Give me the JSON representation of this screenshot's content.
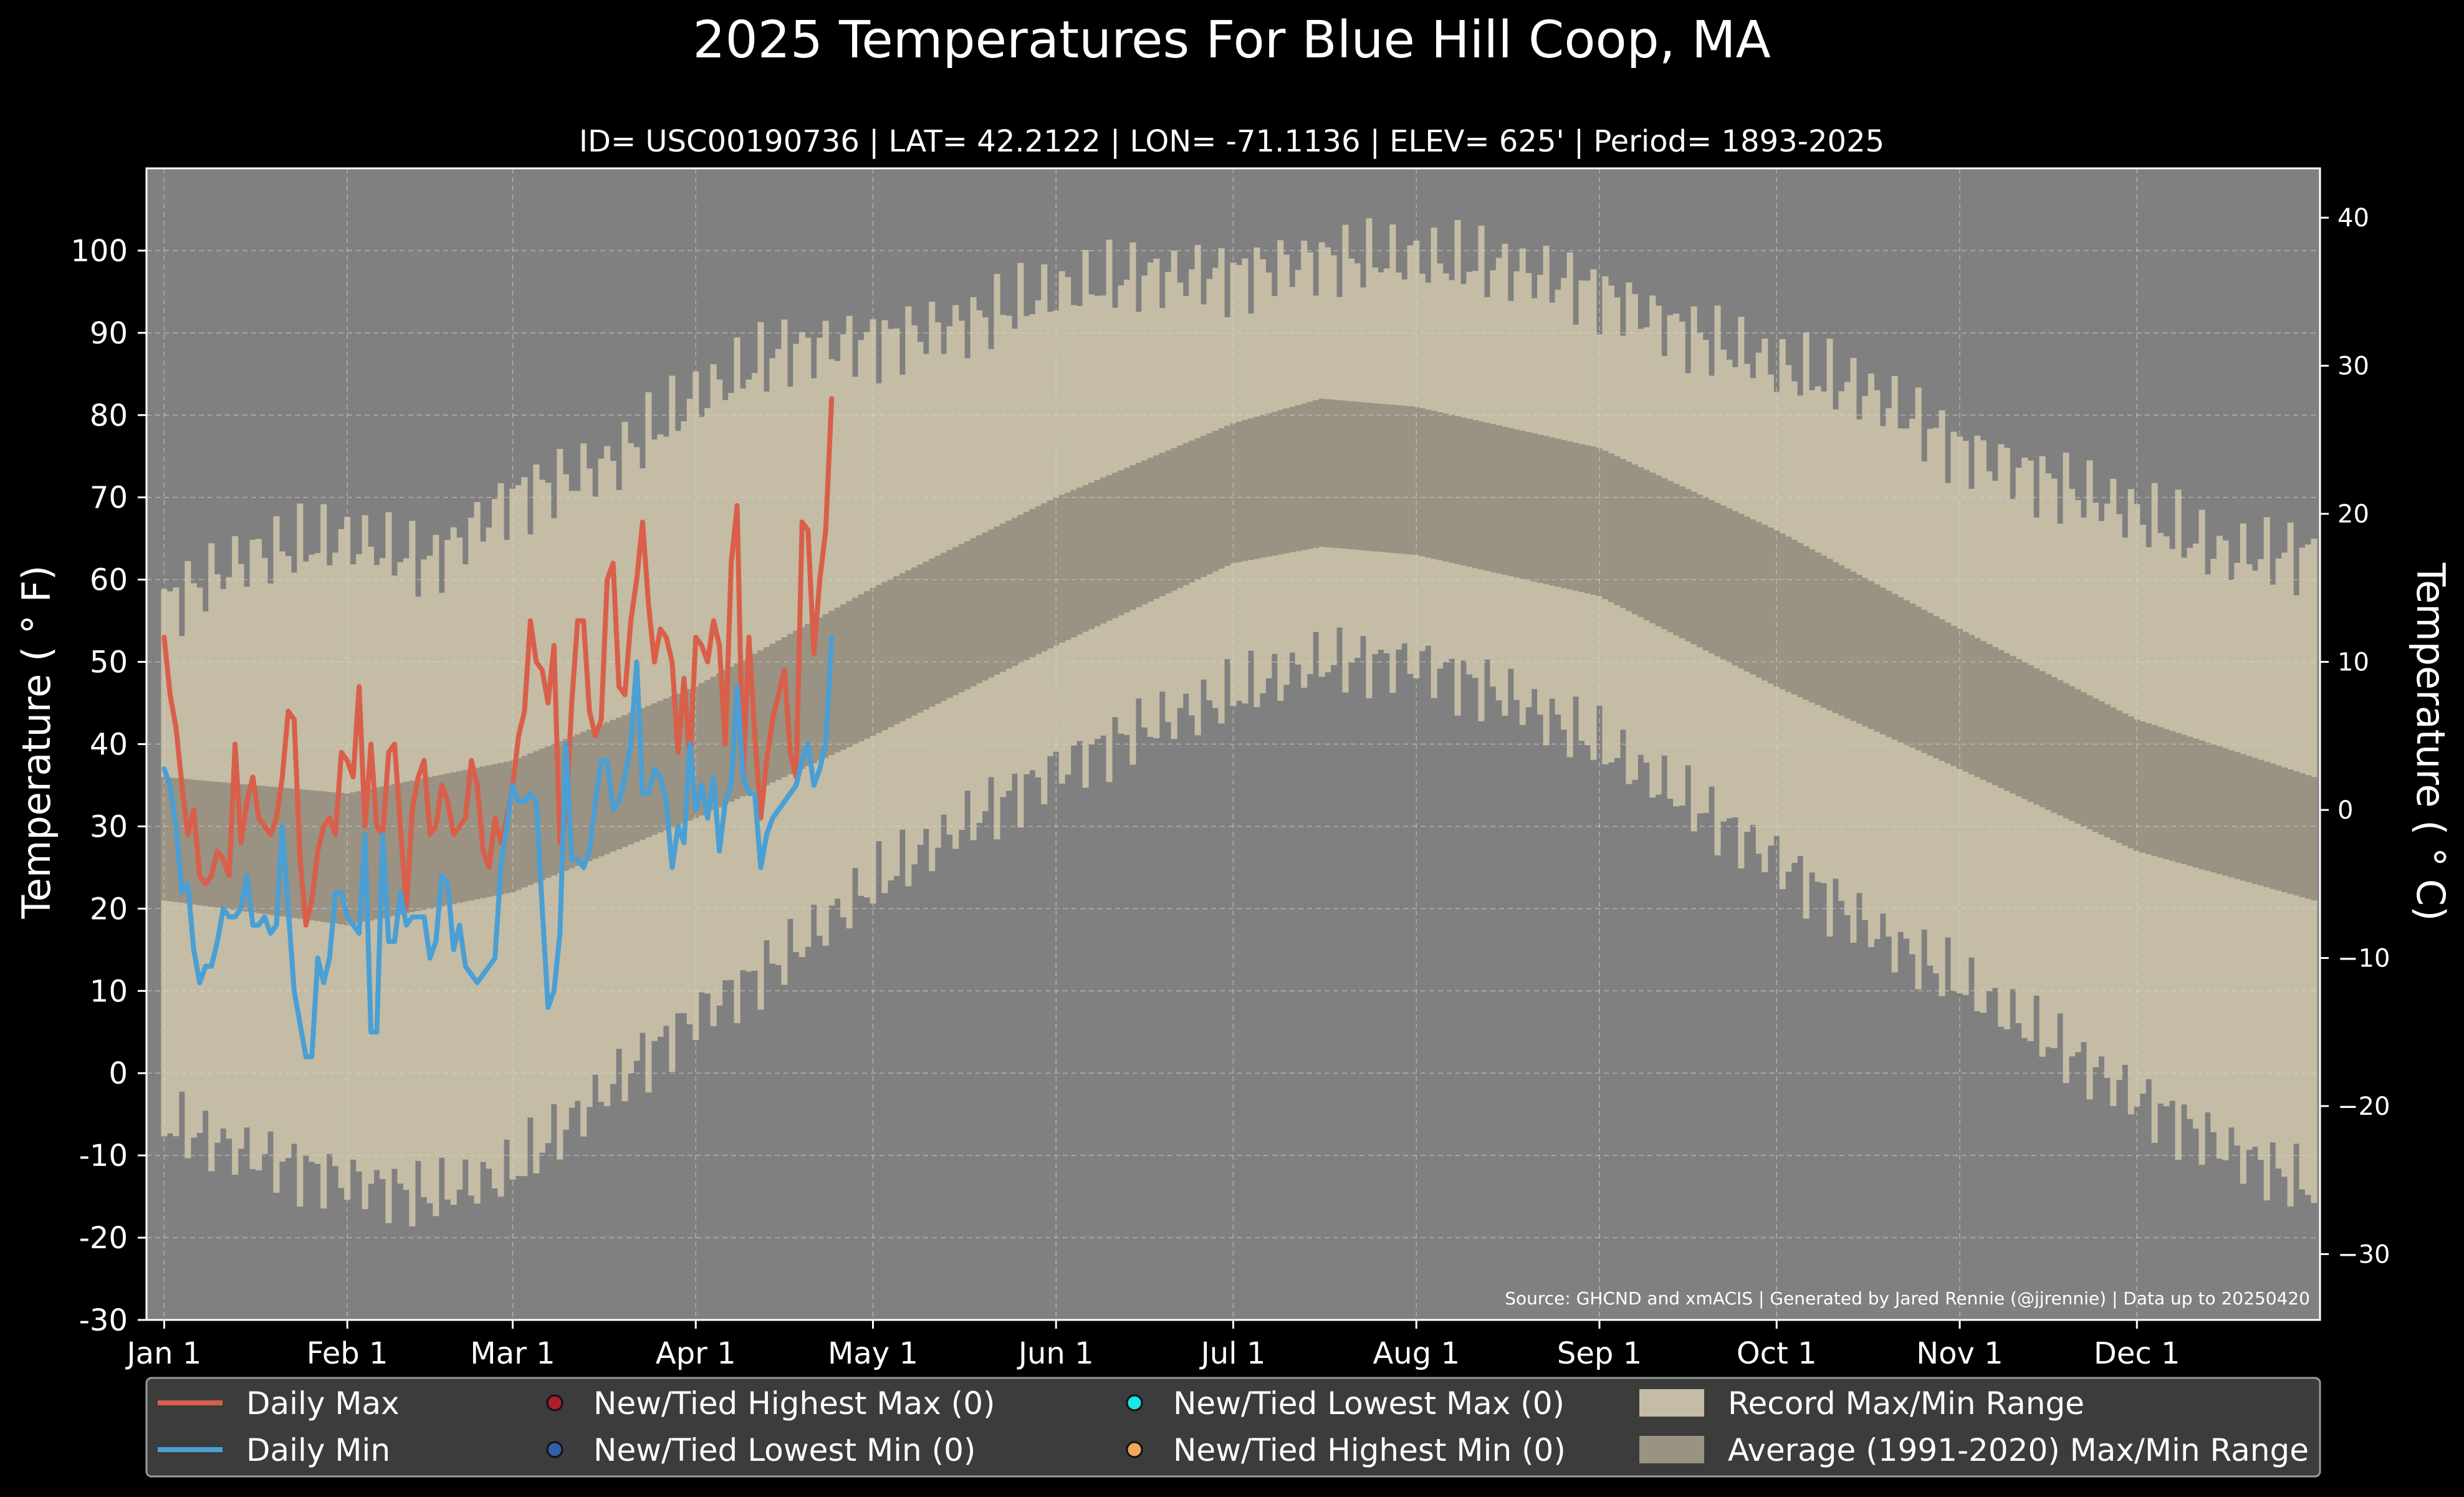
{
  "chart_data": {
    "type": "line",
    "title": "2025 Temperatures For Blue Hill Coop, MA",
    "subtitle": "ID= USC00190736 | LAT= 42.2122 | LON= -71.1136 | ELEV= 625' | Period= 1893-2025",
    "ylabel": "Temperature ($^\\circ$F)",
    "ylabel_display": "Temperature ( ° F)",
    "y2label_display": "Temperature ( ° C)",
    "ylim": [
      -30,
      110
    ],
    "yticks": [
      "-30",
      "-20",
      "-10",
      "0",
      "10",
      "20",
      "30",
      "40",
      "50",
      "60",
      "70",
      "80",
      "90",
      "100"
    ],
    "y2ticks": [
      "−30",
      "−20",
      "−10",
      "0",
      "10",
      "20",
      "30",
      "40"
    ],
    "xlim": [
      -3,
      365
    ],
    "month_ticks": [
      {
        "label": "Jan 1",
        "day": 0
      },
      {
        "label": "Feb 1",
        "day": 31
      },
      {
        "label": "Mar 1",
        "day": 59
      },
      {
        "label": "Apr 1",
        "day": 90
      },
      {
        "label": "May 1",
        "day": 120
      },
      {
        "label": "Jun 1",
        "day": 151
      },
      {
        "label": "Jul 1",
        "day": 181
      },
      {
        "label": "Aug 1",
        "day": 212
      },
      {
        "label": "Sep 1",
        "day": 243
      },
      {
        "label": "Oct 1",
        "day": 273
      },
      {
        "label": "Nov 1",
        "day": 304
      },
      {
        "label": "Dec 1",
        "day": 334
      }
    ],
    "grid": true,
    "source_note": "Source: GHCND and xmACIS | Generated by Jared Rennie (@jjrennie) | Data up to 20250420",
    "record_range_anchors": {
      "max": [
        [
          0,
          57
        ],
        [
          15,
          63
        ],
        [
          31,
          65
        ],
        [
          45,
          62
        ],
        [
          59,
          70
        ],
        [
          75,
          74
        ],
        [
          90,
          82
        ],
        [
          105,
          88
        ],
        [
          120,
          89
        ],
        [
          135,
          91
        ],
        [
          151,
          95
        ],
        [
          166,
          97
        ],
        [
          181,
          97
        ],
        [
          196,
          99
        ],
        [
          212,
          99
        ],
        [
          227,
          98
        ],
        [
          243,
          95
        ],
        [
          258,
          90
        ],
        [
          273,
          86
        ],
        [
          288,
          83
        ],
        [
          304,
          76
        ],
        [
          319,
          72
        ],
        [
          334,
          68
        ],
        [
          349,
          63
        ],
        [
          364,
          63
        ]
      ],
      "min": [
        [
          0,
          -6
        ],
        [
          15,
          -10
        ],
        [
          31,
          -13
        ],
        [
          45,
          -15
        ],
        [
          59,
          -12
        ],
        [
          75,
          -2
        ],
        [
          90,
          7
        ],
        [
          105,
          14
        ],
        [
          120,
          23
        ],
        [
          135,
          30
        ],
        [
          151,
          37
        ],
        [
          166,
          42
        ],
        [
          181,
          46
        ],
        [
          196,
          50
        ],
        [
          212,
          50
        ],
        [
          227,
          46
        ],
        [
          243,
          40
        ],
        [
          258,
          33
        ],
        [
          273,
          26
        ],
        [
          288,
          18
        ],
        [
          304,
          11
        ],
        [
          319,
          4
        ],
        [
          334,
          -3
        ],
        [
          349,
          -9
        ],
        [
          364,
          -14
        ]
      ]
    },
    "normal_range_anchors": {
      "max": [
        [
          0,
          36
        ],
        [
          31,
          34
        ],
        [
          59,
          38
        ],
        [
          90,
          47
        ],
        [
          120,
          59
        ],
        [
          151,
          70
        ],
        [
          181,
          79
        ],
        [
          196,
          82
        ],
        [
          212,
          81
        ],
        [
          243,
          76
        ],
        [
          273,
          66
        ],
        [
          304,
          54
        ],
        [
          334,
          43
        ],
        [
          364,
          36
        ]
      ],
      "min": [
        [
          0,
          21
        ],
        [
          31,
          18
        ],
        [
          59,
          22
        ],
        [
          90,
          31
        ],
        [
          120,
          41
        ],
        [
          151,
          52
        ],
        [
          181,
          62
        ],
        [
          196,
          64
        ],
        [
          212,
          63
        ],
        [
          243,
          58
        ],
        [
          273,
          47
        ],
        [
          304,
          37
        ],
        [
          334,
          27
        ],
        [
          364,
          21
        ]
      ]
    },
    "series": [
      {
        "name": "Daily Max",
        "color": "#d95f4a",
        "values": [
          53,
          46,
          42,
          35,
          29,
          32,
          24,
          23,
          24,
          27,
          26,
          24,
          40,
          28,
          33,
          36,
          31,
          30,
          29,
          31,
          36,
          44,
          43,
          26,
          18,
          21,
          27,
          30,
          31,
          29,
          39,
          38,
          36,
          47,
          30,
          40,
          30,
          29,
          39,
          40,
          30,
          20,
          32,
          36,
          38,
          29,
          30,
          35,
          33,
          29,
          30,
          31,
          38,
          35,
          27,
          25,
          31,
          28,
          31,
          35,
          41,
          44,
          55,
          50,
          49,
          45,
          52,
          28,
          31,
          45,
          55,
          55,
          44,
          41,
          43,
          60,
          62,
          47,
          46,
          55,
          60,
          67,
          57,
          50,
          54,
          53,
          50,
          39,
          48,
          38,
          53,
          52,
          50,
          55,
          52,
          40,
          62,
          69,
          36,
          53,
          41,
          31,
          38,
          43,
          46,
          49,
          39,
          36,
          67,
          66,
          51,
          60,
          66,
          82
        ]
      },
      {
        "name": "Daily Min",
        "color": "#4a9fd4",
        "values": [
          37,
          35,
          30,
          22,
          23,
          15,
          11,
          13,
          13,
          16,
          20,
          19,
          19,
          20,
          24,
          18,
          18,
          19,
          17,
          18,
          30,
          20,
          10,
          6,
          2,
          2,
          14,
          11,
          14,
          22,
          22,
          19,
          18,
          17,
          29,
          5,
          5,
          29,
          16,
          16,
          22,
          18,
          19,
          19,
          19,
          14,
          16,
          24,
          23,
          15,
          18,
          13,
          12,
          11,
          12,
          13,
          14,
          25,
          30,
          35,
          33,
          33,
          34,
          33,
          20,
          8,
          10,
          17,
          40,
          26,
          26,
          25,
          27,
          33,
          38,
          38,
          32,
          33,
          36,
          40,
          50,
          34,
          34,
          37,
          36,
          33,
          25,
          30,
          28,
          40,
          32,
          35,
          31,
          36,
          27,
          33,
          35,
          47,
          36,
          34,
          34,
          25,
          29,
          31,
          32,
          33,
          34,
          35,
          38,
          40,
          35,
          37,
          40,
          53
        ]
      }
    ],
    "legend": {
      "placement": "bottom",
      "items": [
        {
          "label": "Daily Max",
          "symbol": "line",
          "color": "#d95f4a"
        },
        {
          "label": "Daily Min",
          "symbol": "line",
          "color": "#4a9fd4"
        },
        {
          "label": "New/Tied Highest Max (0)",
          "symbol": "dot",
          "color": "#b01c2e"
        },
        {
          "label": "New/Tied Lowest Min (0)",
          "symbol": "dot",
          "color": "#2f5fa8"
        },
        {
          "label": "New/Tied Lowest Max (0)",
          "symbol": "dot",
          "color": "#19e6e6"
        },
        {
          "label": "New/Tied Highest Min (0)",
          "symbol": "dot",
          "color": "#f2a65a"
        },
        {
          "label": "Record Max/Min Range",
          "symbol": "patch",
          "color": "#c4bca4"
        },
        {
          "label": "Average (1991-2020) Max/Min Range",
          "symbol": "patch",
          "color": "#9a9282"
        }
      ]
    },
    "colors": {
      "background": "#000000",
      "plot_background": "#808080",
      "record_fill": "#c4bca4",
      "normal_fill": "#9a9282",
      "legend_box": "#3c3c3c"
    }
  }
}
